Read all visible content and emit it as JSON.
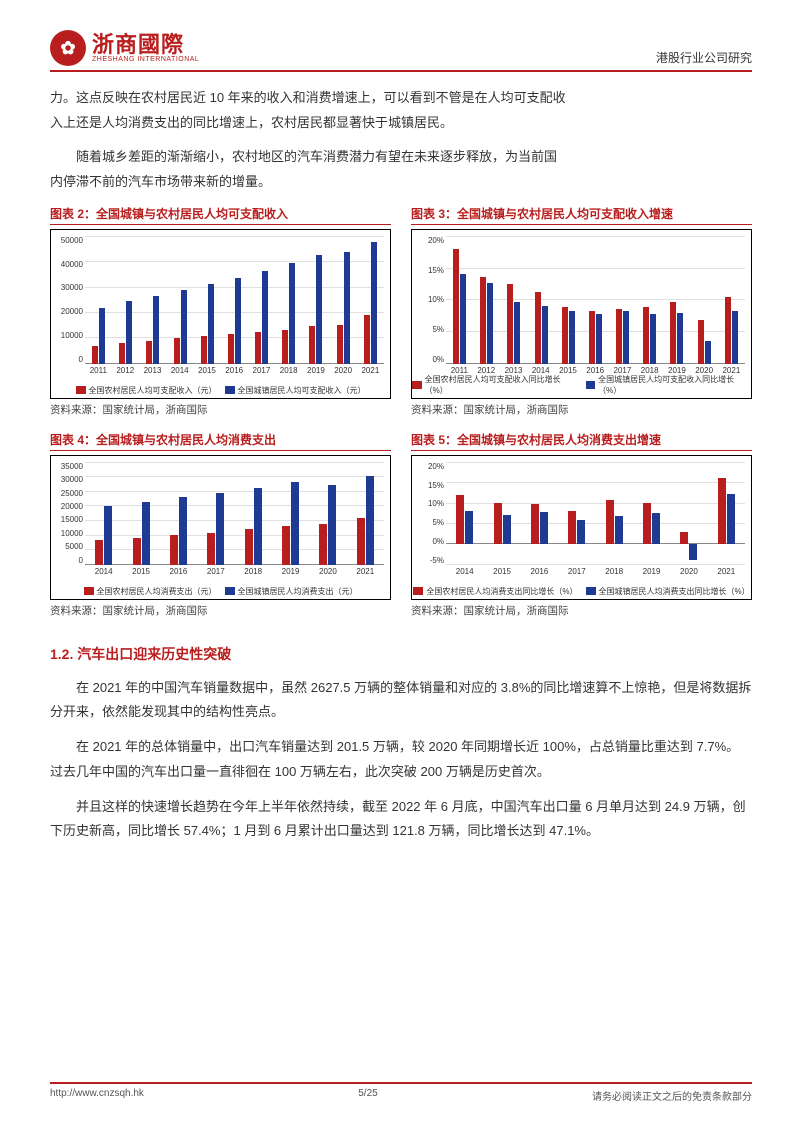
{
  "header": {
    "logo_cn": "浙商國際",
    "logo_en": "ZHESHANG INTERNATIONAL",
    "logo_glyph": "✿",
    "right": "港股行业公司研究"
  },
  "paragraphs": {
    "p1a": "力。这点反映在农村居民近 10 年来的收入和消费增速上，可以看到不管是在人均可支配收",
    "p1b": "入上还是人均消费支出的同比增速上，农村居民都显著快于城镇居民。",
    "p2a": "随着城乡差距的渐渐缩小，农村地区的汽车消费潜力有望在未来逐步释放，为当前国",
    "p2b": "内停滞不前的汽车市场带来新的增量。"
  },
  "chart2": {
    "title": "图表 2：全国城镇与农村居民人均可支配收入",
    "ylim_max": 50000,
    "ytick_step": 10000,
    "categories": [
      "2011",
      "2012",
      "2013",
      "2014",
      "2015",
      "2016",
      "2017",
      "2018",
      "2019",
      "2020",
      "2021"
    ],
    "rural": [
      6977,
      7917,
      8896,
      9892,
      10772,
      11616,
      12363,
      13066,
      14617,
      15204,
      18931
    ],
    "urban": [
      21810,
      24565,
      26467,
      28844,
      31195,
      33616,
      36396,
      39251,
      42359,
      43834,
      47412
    ],
    "legend_rural": "全国农村居民人均可支配收入（元）",
    "legend_urban": "全国城镇居民人均可支配收入（元）",
    "source": "资料来源：国家统计局，浙商国际",
    "bar_color_rural": "#b91e1e",
    "bar_color_urban": "#1f3a93",
    "grid_color": "#e0e0e0",
    "background_color": "#ffffff",
    "label_fontsize": 8
  },
  "chart3": {
    "title": "图表 3：全国城镇与农村居民人均可支配收入增速",
    "ylim_max": 20,
    "ytick_step": 5,
    "categories": [
      "2011",
      "2012",
      "2013",
      "2014",
      "2015",
      "2016",
      "2017",
      "2018",
      "2019",
      "2020",
      "2021"
    ],
    "rural": [
      17.9,
      13.5,
      12.4,
      11.2,
      8.9,
      8.2,
      8.6,
      8.8,
      9.6,
      6.9,
      10.5
    ],
    "urban": [
      14.1,
      12.6,
      9.7,
      9.0,
      8.2,
      7.8,
      8.3,
      7.8,
      7.9,
      3.5,
      8.2
    ],
    "legend_rural": "全国农村居民人均可支配收入同比增长（%）",
    "legend_urban": "全国城镇居民人均可支配收入同比增长（%）",
    "source": "资料来源：国家统计局，浙商国际",
    "bar_color_rural": "#b91e1e",
    "bar_color_urban": "#1f3a93",
    "grid_color": "#e0e0e0",
    "background_color": "#ffffff",
    "label_fontsize": 8
  },
  "chart4": {
    "title": "图表 4：全国城镇与农村居民人均消费支出",
    "ylim_max": 35000,
    "ytick_step": 5000,
    "categories": [
      "2014",
      "2015",
      "2016",
      "2017",
      "2018",
      "2019",
      "2020",
      "2021"
    ],
    "rural": [
      8383,
      9223,
      10130,
      10955,
      12124,
      13328,
      13713,
      15916
    ],
    "urban": [
      19968,
      21392,
      23079,
      24445,
      26112,
      28063,
      27007,
      30307
    ],
    "legend_rural": "全国农村居民人均消费支出（元）",
    "legend_urban": "全国城镇居民人均消费支出（元）",
    "source": "资料来源：国家统计局，浙商国际",
    "bar_color_rural": "#b91e1e",
    "bar_color_urban": "#1f3a93",
    "grid_color": "#e0e0e0",
    "background_color": "#ffffff",
    "label_fontsize": 8
  },
  "chart5": {
    "title": "图表 5：全国城镇与农村居民人均消费支出增速",
    "ymin": -5,
    "ylim_max": 20,
    "ytick_step": 5,
    "categories": [
      "2014",
      "2015",
      "2016",
      "2017",
      "2018",
      "2019",
      "2020",
      "2021"
    ],
    "rural": [
      12.0,
      10.0,
      9.8,
      8.1,
      10.7,
      9.9,
      2.9,
      16.1
    ],
    "urban": [
      8.0,
      7.1,
      7.9,
      5.9,
      6.8,
      7.5,
      -3.8,
      12.2
    ],
    "legend_rural": "全国农村居民人均消费支出同比增长（%）",
    "legend_urban": "全国城镇居民人均消费支出同比增长（%）",
    "source": "资料来源：国家统计局，浙商国际",
    "bar_color_rural": "#b91e1e",
    "bar_color_urban": "#1f3a93",
    "grid_color": "#e0e0e0",
    "background_color": "#ffffff",
    "label_fontsize": 8
  },
  "section": {
    "heading": "1.2. 汽车出口迎来历史性突破",
    "p3": "在 2021 年的中国汽车销量数据中，虽然 2627.5 万辆的整体销量和对应的 3.8%的同比增速算不上惊艳，但是将数据拆分开来，依然能发现其中的结构性亮点。",
    "p4": "在 2021 年的总体销量中，出口汽车销量达到 201.5 万辆，较 2020 年同期增长近 100%，占总销量比重达到 7.7%。过去几年中国的汽车出口量一直徘徊在 100 万辆左右，此次突破 200 万辆是历史首次。",
    "p5": "并且这样的快速增长趋势在今年上半年依然持续，截至 2022 年 6 月底，中国汽车出口量 6 月单月达到 24.9 万辆，创下历史新高，同比增长 57.4%；1 月到 6 月累计出口量达到 121.8 万辆，同比增长达到 47.1%。"
  },
  "footer": {
    "url": "http://www.cnzsqh.hk",
    "page": "5/25",
    "disclaimer": "请务必阅读正文之后的免责条款部分"
  }
}
